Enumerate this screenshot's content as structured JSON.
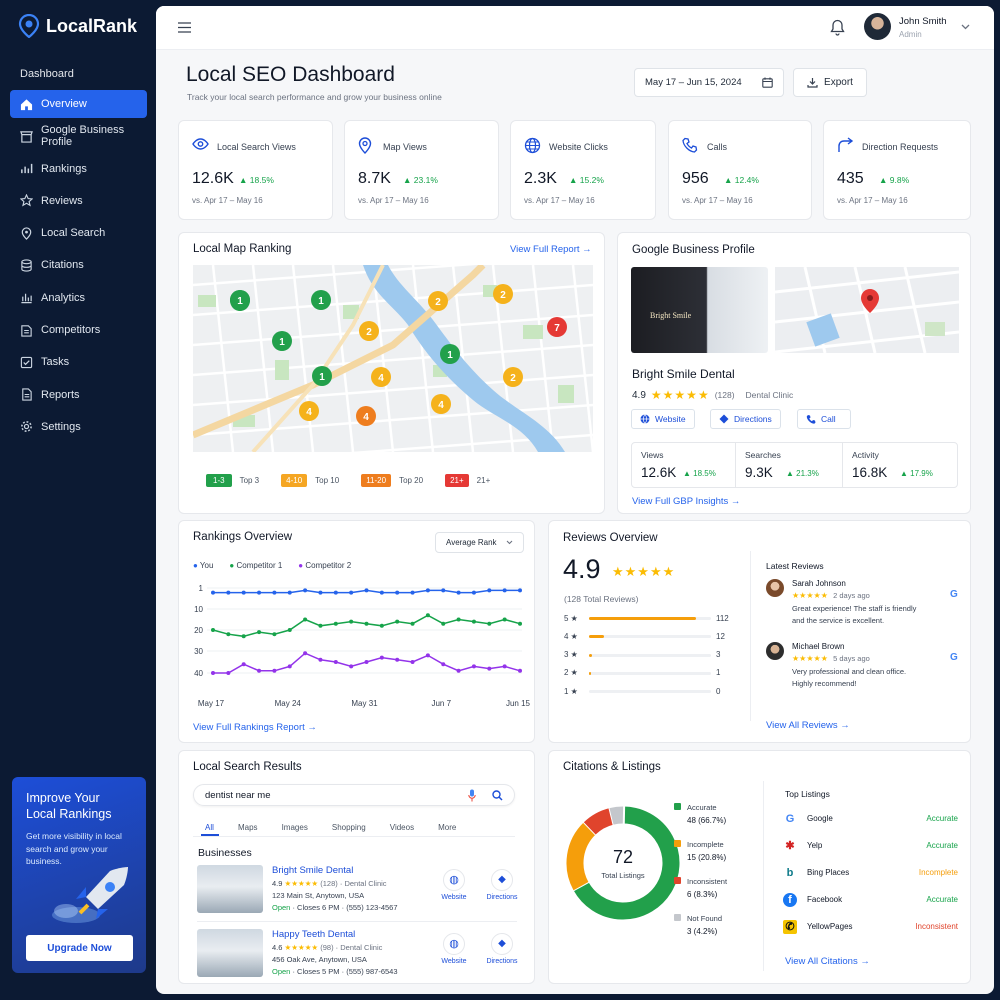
{
  "app": {
    "name": "LocalRank"
  },
  "sidebar": {
    "section": "Dashboard",
    "items": [
      {
        "label": "Overview",
        "icon": "home-icon"
      },
      {
        "label": "Google Business Profile",
        "icon": "store-icon"
      },
      {
        "label": "Rankings",
        "icon": "bar-chart-icon"
      },
      {
        "label": "Reviews",
        "icon": "star-icon"
      },
      {
        "label": "Local Search",
        "icon": "map-pin-icon"
      },
      {
        "label": "Citations",
        "icon": "database-icon"
      },
      {
        "label": "Analytics",
        "icon": "analytics-icon"
      },
      {
        "label": "Competitors",
        "icon": "competitors-icon"
      },
      {
        "label": "Tasks",
        "icon": "tasks-icon"
      },
      {
        "label": "Reports",
        "icon": "document-icon"
      },
      {
        "label": "Settings",
        "icon": "gear-icon"
      }
    ],
    "promo": {
      "title": "Improve Your Local Rankings",
      "text": "Get more visibility in local search and grow your business.",
      "button": "Upgrade Now"
    }
  },
  "user": {
    "name": "John Smith",
    "role": "Admin"
  },
  "header": {
    "title": "Local SEO Dashboard",
    "subtitle": "Track your local search performance and grow your business online",
    "date_range": "May 17 – Jun 15, 2024",
    "export": "Export"
  },
  "stats": [
    {
      "label": "Local Search Views",
      "value": "12.6K",
      "change": "18.5%",
      "compare": "vs. Apr 17 – May 16"
    },
    {
      "label": "Map Views",
      "value": "8.7K",
      "change": "23.1%",
      "compare": "vs. Apr 17 – May 16"
    },
    {
      "label": "Website Clicks",
      "value": "2.3K",
      "change": "15.2%",
      "compare": "vs. Apr 17 – May 16"
    },
    {
      "label": "Calls",
      "value": "956",
      "change": "12.4%",
      "compare": "vs. Apr 17 – May 16"
    },
    {
      "label": "Direction Requests",
      "value": "435",
      "change": "9.8%",
      "compare": "vs. Apr 17 – May 16"
    }
  ],
  "map_ranking": {
    "title": "Local Map Ranking",
    "link": "View Full Report",
    "legend": [
      {
        "chip": "1-3",
        "label": "Top 3",
        "color": "#22a04b"
      },
      {
        "chip": "4-10",
        "label": "Top 10",
        "color": "#f5a623"
      },
      {
        "chip": "11-20",
        "label": "Top 20",
        "color": "#ee7d1e"
      },
      {
        "chip": "21+",
        "label": "21+",
        "color": "#e53935"
      }
    ],
    "pins": [
      "1",
      "1",
      "2",
      "2",
      "7",
      "1",
      "2",
      "1",
      "2",
      "1",
      "4",
      "4",
      "4",
      "4"
    ]
  },
  "gbp": {
    "title": "Google Business Profile",
    "storefront_sign": "Bright Smile",
    "name": "Bright Smile Dental",
    "rating": "4.9",
    "stars": "★★★★★",
    "count": "(128)",
    "category": "Dental Clinic",
    "buttons": [
      "Website",
      "Directions",
      "Call"
    ],
    "metrics": [
      {
        "label": "Views",
        "value": "12.6K",
        "change": "18.5%"
      },
      {
        "label": "Searches",
        "value": "9.3K",
        "change": "21.3%"
      },
      {
        "label": "Activity",
        "value": "16.8K",
        "change": "17.9%"
      }
    ],
    "link": "View Full GBP Insights"
  },
  "rankings": {
    "title": "Rankings Overview",
    "select": "Average Rank",
    "link": "View Full Rankings Report",
    "legend": [
      {
        "name": "You",
        "color": "#2563eb"
      },
      {
        "name": "Competitor 1",
        "color": "#16a34a"
      },
      {
        "name": "Competitor 2",
        "color": "#9333ea"
      }
    ],
    "y_ticks": [
      "1",
      "10",
      "20",
      "30",
      "40"
    ],
    "x_ticks": [
      "May 17",
      "May 24",
      "May 31",
      "Jun 7",
      "Jun 15"
    ]
  },
  "chart_data": {
    "type": "line",
    "title": "Rankings Overview",
    "y_ticks": [
      1,
      10,
      20,
      30,
      40
    ],
    "ylim": [
      1,
      50
    ],
    "y_inverted": true,
    "x_ticks": [
      "May 17",
      "May 24",
      "May 31",
      "Jun 7",
      "Jun 15"
    ],
    "series": [
      {
        "name": "You",
        "values": [
          3,
          3,
          3,
          3,
          3,
          3,
          2,
          3,
          3,
          3,
          2,
          3,
          3,
          3,
          2,
          2,
          3,
          3,
          2,
          2,
          2
        ]
      },
      {
        "name": "Competitor 1",
        "values": [
          20,
          22,
          23,
          21,
          22,
          20,
          15,
          18,
          17,
          16,
          17,
          18,
          16,
          17,
          13,
          17,
          15,
          16,
          17,
          15,
          17
        ]
      },
      {
        "name": "Competitor 2",
        "values": [
          43,
          40,
          36,
          39,
          39,
          37,
          31,
          34,
          35,
          37,
          35,
          33,
          34,
          35,
          32,
          36,
          39,
          37,
          38,
          37,
          39
        ]
      }
    ]
  },
  "reviews": {
    "title": "Reviews Overview",
    "rating": "4.9",
    "stars": "★★★★★",
    "total": "(128 Total Reviews)",
    "bars": [
      {
        "star": "5 ★",
        "count": "112",
        "fraction": 0.875
      },
      {
        "star": "4 ★",
        "count": "12",
        "fraction": 0.12
      },
      {
        "star": "3 ★",
        "count": "3",
        "fraction": 0.025
      },
      {
        "star": "2 ★",
        "count": "1",
        "fraction": 0.015
      },
      {
        "star": "1 ★",
        "count": "0",
        "fraction": 0
      }
    ],
    "latest_title": "Latest Reviews",
    "items": [
      {
        "name": "Sarah Johnson",
        "stars": "★★★★★",
        "time": "2 days ago",
        "text": "Great experience! The staff is friendly and the service is excellent."
      },
      {
        "name": "Michael Brown",
        "stars": "★★★★★",
        "time": "5 days ago",
        "text": "Very professional and clean office. Highly recommend!"
      }
    ],
    "link": "View All Reviews"
  },
  "search": {
    "title": "Local Search Results",
    "query": "dentist near me",
    "tabs": [
      "All",
      "Maps",
      "Images",
      "Shopping",
      "Videos",
      "More"
    ],
    "businesses_title": "Businesses",
    "results": [
      {
        "name": "Bright Smile Dental",
        "rating": "4.9",
        "stars": "★★★★★",
        "count": "(128)",
        "category": "Dental Clinic",
        "address": "123 Main St, Anytown, USA",
        "open": "Open",
        "hours": "Closes 6 PM",
        "phone": "(555) 123-4567"
      },
      {
        "name": "Happy Teeth Dental",
        "rating": "4.6",
        "stars": "★★★★★",
        "count": "(98)",
        "category": "Dental Clinic",
        "address": "456 Oak Ave, Anytown, USA",
        "open": "Open",
        "hours": "Closes 5 PM",
        "phone": "(555) 987-6543"
      }
    ],
    "actions": [
      "Website",
      "Directions"
    ]
  },
  "citations": {
    "title": "Citations & Listings",
    "total": "72",
    "total_label": "Total Listings",
    "segments": [
      {
        "label": "Accurate",
        "value": 48,
        "pct": "48 (66.7%)",
        "color": "#22a04b"
      },
      {
        "label": "Incomplete",
        "value": 15,
        "pct": "15 (20.8%)",
        "color": "#f59e0b"
      },
      {
        "label": "Inconsistent",
        "value": 6,
        "pct": "6 (8.3%)",
        "color": "#e0442c"
      },
      {
        "label": "Not Found",
        "value": 3,
        "pct": "3 (4.2%)",
        "color": "#c4c7cc"
      }
    ],
    "top_title": "Top Listings",
    "listings": [
      {
        "name": "Google",
        "status": "Accurate",
        "color": "#16a34a",
        "icon": "google-icon"
      },
      {
        "name": "Yelp",
        "status": "Accurate",
        "color": "#16a34a",
        "icon": "yelp-icon"
      },
      {
        "name": "Bing Places",
        "status": "Incomplete",
        "color": "#f59e0b",
        "icon": "bing-icon"
      },
      {
        "name": "Facebook",
        "status": "Accurate",
        "color": "#16a34a",
        "icon": "facebook-icon"
      },
      {
        "name": "YellowPages",
        "status": "Inconsistent",
        "color": "#e0442c",
        "icon": "yellowpages-icon"
      }
    ],
    "link": "View All Citations"
  }
}
